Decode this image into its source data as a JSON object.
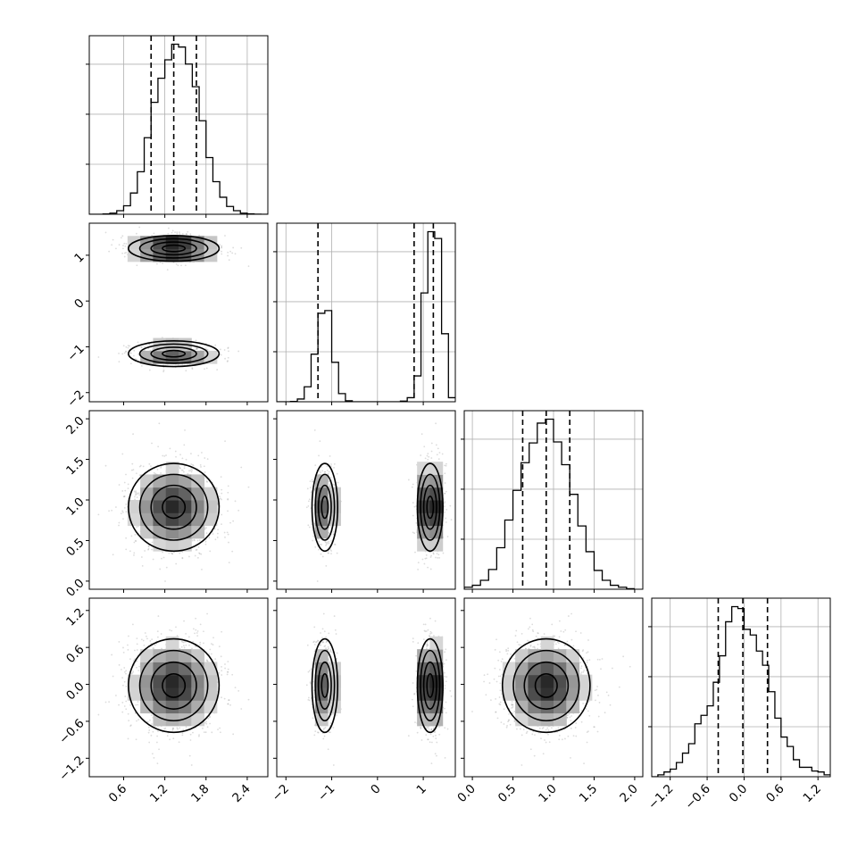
{
  "chart_data": {
    "type": "corner",
    "n_params": 4,
    "grid": true,
    "params": [
      {
        "range": [
          0.1,
          2.7
        ],
        "ticks": [
          0.6,
          1.2,
          1.8,
          2.4
        ],
        "tick_labels": [
          "0.6",
          "1.2",
          "1.8",
          "2.4"
        ],
        "quantiles": [
          1.0,
          1.33,
          1.66
        ],
        "mean": 1.33,
        "std": 0.33
      },
      {
        "range": [
          -2.2,
          1.7
        ],
        "ticks": [
          -2,
          -1,
          0,
          1
        ],
        "tick_labels": [
          "−2",
          "−1",
          "0",
          "1"
        ],
        "quantiles": [
          -1.3,
          0.8,
          1.22
        ],
        "modes": [
          -1.15,
          1.15
        ],
        "mode_weights": [
          0.35,
          0.65
        ],
        "mode_std": 0.14
      },
      {
        "range": [
          -0.1,
          2.1
        ],
        "ticks": [
          0.0,
          0.5,
          1.0,
          1.5,
          2.0
        ],
        "tick_labels": [
          "0.0",
          "0.5",
          "1.0",
          "1.5",
          "2.0"
        ],
        "quantiles": [
          0.62,
          0.91,
          1.2
        ],
        "mean": 0.91,
        "std": 0.27
      },
      {
        "range": [
          -1.5,
          1.4
        ],
        "ticks": [
          -1.2,
          -0.6,
          0.0,
          0.6,
          1.2
        ],
        "tick_labels": [
          "−1.2",
          "−0.6",
          "0.0",
          "0.6",
          "1.2"
        ],
        "quantiles": [
          -0.42,
          -0.02,
          0.38
        ],
        "mean": -0.02,
        "std": 0.38
      }
    ],
    "histograms": [
      {
        "param": 0,
        "bins": [
          0.1,
          0.2,
          0.3,
          0.4,
          0.5,
          0.6,
          0.7,
          0.8,
          0.9,
          1.0,
          1.1,
          1.2,
          1.3,
          1.4,
          1.5,
          1.6,
          1.7,
          1.8,
          1.9,
          2.0,
          2.1,
          2.2,
          2.3,
          2.4,
          2.5,
          2.6,
          2.7
        ],
        "counts": [
          0,
          0,
          2,
          8,
          25,
          60,
          150,
          300,
          540,
          790,
          960,
          1090,
          1200,
          1180,
          1060,
          900,
          660,
          400,
          230,
          120,
          55,
          25,
          8,
          3,
          1,
          0
        ]
      },
      {
        "param": 1,
        "bins": [
          -2.2,
          -2.05,
          -1.9,
          -1.75,
          -1.6,
          -1.45,
          -1.3,
          -1.15,
          -1.0,
          -0.85,
          -0.7,
          -0.55,
          -0.4,
          -0.25,
          -0.1,
          0.05,
          0.2,
          0.35,
          0.5,
          0.65,
          0.8,
          0.95,
          1.1,
          1.25,
          1.4,
          1.55,
          1.7
        ],
        "counts": [
          0,
          0,
          5,
          40,
          220,
          700,
          1300,
          1340,
          580,
          120,
          15,
          0,
          0,
          0,
          0,
          0,
          0,
          0,
          10,
          60,
          380,
          1600,
          2500,
          2400,
          1000,
          60
        ]
      },
      {
        "param": 2,
        "bins": [
          -0.1,
          0.0,
          0.1,
          0.2,
          0.3,
          0.4,
          0.5,
          0.6,
          0.7,
          0.8,
          0.9,
          1.0,
          1.1,
          1.2,
          1.3,
          1.4,
          1.5,
          1.6,
          1.7,
          1.8,
          1.9,
          2.0
        ],
        "counts": [
          20,
          40,
          90,
          200,
          420,
          700,
          1000,
          1280,
          1480,
          1680,
          1720,
          1490,
          1260,
          960,
          640,
          380,
          190,
          90,
          40,
          20,
          5
        ]
      },
      {
        "param": 3,
        "bins": [
          -1.5,
          -1.4,
          -1.3,
          -1.2,
          -1.1,
          -1.0,
          -0.9,
          -0.8,
          -0.7,
          -0.6,
          -0.5,
          -0.4,
          -0.3,
          -0.2,
          -0.1,
          0.0,
          0.1,
          0.2,
          0.3,
          0.4,
          0.5,
          0.6,
          0.7,
          0.8,
          0.9,
          1.0,
          1.1,
          1.2,
          1.3,
          1.4
        ],
        "counts": [
          0,
          20,
          50,
          80,
          150,
          250,
          350,
          560,
          650,
          750,
          1000,
          1280,
          1640,
          1800,
          1780,
          1560,
          1500,
          1330,
          1180,
          900,
          620,
          420,
          320,
          180,
          100,
          100,
          60,
          50,
          20
        ]
      }
    ]
  }
}
